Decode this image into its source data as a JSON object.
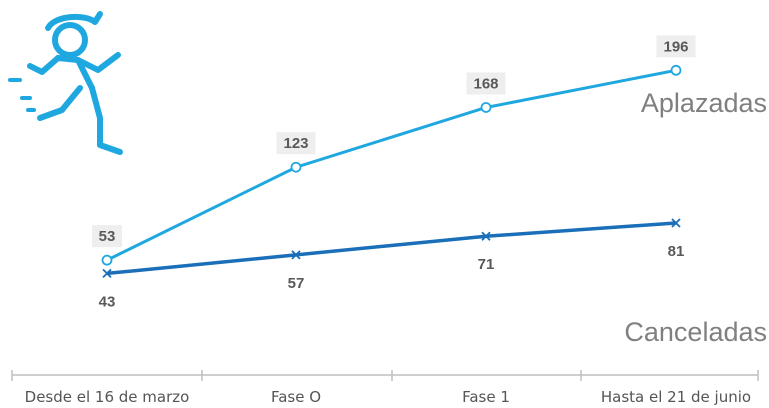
{
  "colors": {
    "aplazadas": "#1fa8e0",
    "canceladas": "#1a6fb8",
    "axis": "#bfbfbf",
    "icon": "#1fa8e0"
  },
  "icon": "running-person-icon",
  "chart_data": {
    "type": "line",
    "categories": [
      "Desde el 16 de marzo",
      "Fase O",
      "Fase 1",
      "Hasta el 21 de junio"
    ],
    "series": [
      {
        "name": "Aplazadas",
        "values": [
          53,
          123,
          168,
          196
        ],
        "marker": "circle",
        "label_position": "above",
        "label_background": true
      },
      {
        "name": "Canceladas",
        "values": [
          43,
          57,
          71,
          81
        ],
        "marker": "x",
        "label_position": "below",
        "label_background": false
      }
    ],
    "title": "",
    "xlabel": "",
    "ylabel": "",
    "ylim": [
      0,
      220
    ],
    "grid": false,
    "legend": "series names at right end of lines"
  }
}
